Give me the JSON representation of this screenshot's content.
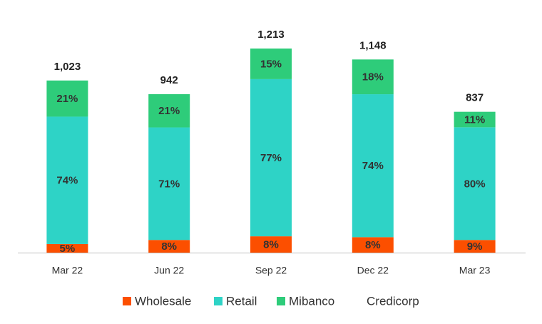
{
  "chart_data": {
    "type": "bar",
    "stacked": true,
    "categories": [
      "Mar 22",
      "Jun 22",
      "Sep 22",
      "Dec 22",
      "Mar 23"
    ],
    "series": [
      {
        "name": "Wholesale",
        "color": "#fc4f00",
        "values": [
          5,
          8,
          8,
          8,
          9
        ],
        "value_labels": [
          "5%",
          "8%",
          "8%",
          "8%",
          "9%"
        ]
      },
      {
        "name": "Retail",
        "color": "#2ed3c6",
        "values": [
          74,
          71,
          77,
          74,
          80
        ],
        "value_labels": [
          "74%",
          "71%",
          "77%",
          "74%",
          "80%"
        ]
      },
      {
        "name": "Mibanco",
        "color": "#2ecc7a",
        "values": [
          21,
          21,
          15,
          18,
          11
        ],
        "value_labels": [
          "21%",
          "21%",
          "15%",
          "18%",
          "11%"
        ]
      },
      {
        "name": "Credicorp",
        "values": [
          1023,
          942,
          1213,
          1148,
          837
        ],
        "value_labels": [
          "1,023",
          "942",
          "1,213",
          "1,148",
          "837"
        ]
      }
    ],
    "legend": "bottom"
  }
}
